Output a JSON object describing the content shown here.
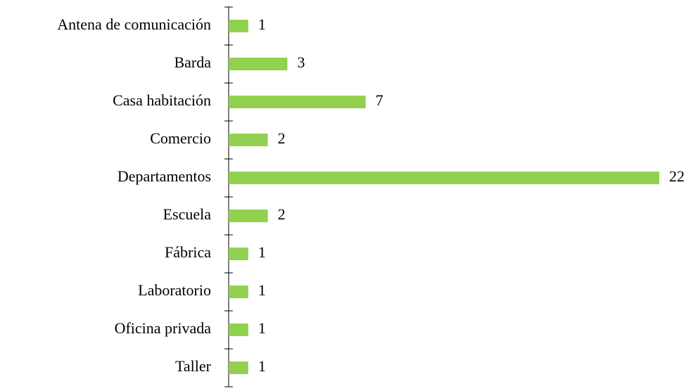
{
  "chart_data": {
    "type": "barh",
    "categories": [
      "Antena de comunicación",
      "Barda",
      "Casa habitación",
      "Comercio",
      "Departamentos",
      "Escuela",
      "Fábrica",
      "Laboratorio",
      "Oficina privada",
      "Taller"
    ],
    "values": [
      1,
      3,
      7,
      2,
      22,
      2,
      1,
      1,
      1,
      1
    ],
    "color": "#92d050"
  }
}
